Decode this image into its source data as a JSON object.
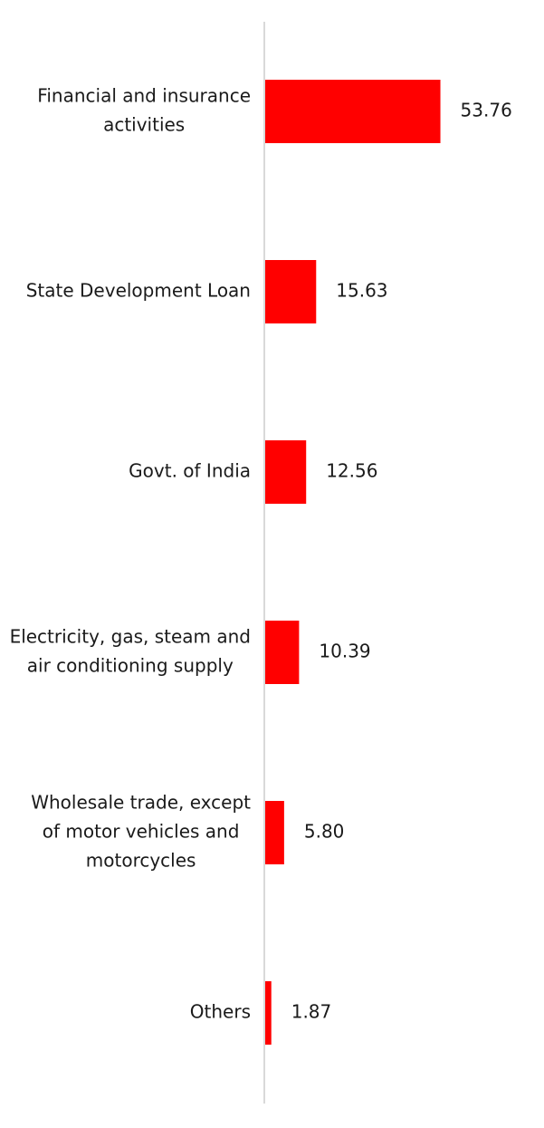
{
  "chart_data": {
    "type": "bar",
    "orientation": "horizontal",
    "categories": [
      "Financial and insurance activities",
      "State Development Loan",
      "Govt. of India",
      "Electricity, gas, steam and air conditioning supply",
      "Wholesale trade, except of motor vehicles and motorcycles",
      "Others"
    ],
    "category_lines": [
      [
        "Financial and insurance",
        "activities"
      ],
      [
        "State Development Loan"
      ],
      [
        "Govt. of India"
      ],
      [
        "Electricity, gas, steam and",
        "air conditioning supply"
      ],
      [
        "Wholesale trade, except",
        "of motor vehicles and",
        "motorcycles"
      ],
      [
        "Others"
      ]
    ],
    "values": [
      53.76,
      15.63,
      12.56,
      10.39,
      5.8,
      1.87
    ],
    "value_labels": [
      "53.76",
      "15.63",
      "12.56",
      "10.39",
      "5.80",
      "1.87"
    ],
    "title": "",
    "xlabel": "",
    "ylabel": "",
    "xlim": [
      0,
      100
    ],
    "grid": false,
    "legend": "none",
    "colors": {
      "bar": "#ff0000",
      "axis": "#d9d9d9",
      "text": "#1a1a1a"
    }
  }
}
